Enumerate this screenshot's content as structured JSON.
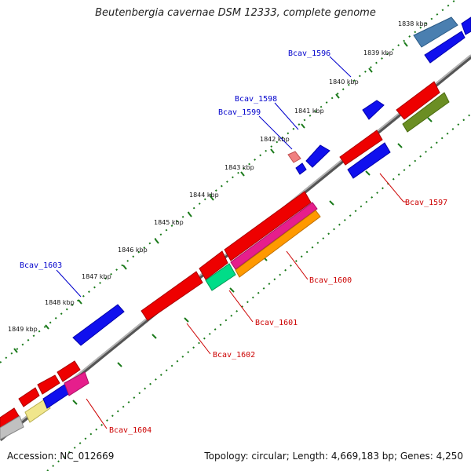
{
  "title": "Beutenbergia cavernae DSM 12333, complete genome",
  "accession": "Accession: NC_012669",
  "summary": "Topology: circular; Length: 4,669,183 bp; Genes: 4,250",
  "colors": {
    "forward_label": "#0000cc",
    "reverse_label": "#cc0000",
    "backbone": "#808080",
    "ticks": "#1a7a1a"
  },
  "ticks": [
    {
      "label": "1838 kbp"
    },
    {
      "label": "1839 kbp"
    },
    {
      "label": "1840 kbp"
    },
    {
      "label": "1841 kbp"
    },
    {
      "label": "1842 kbp"
    },
    {
      "label": "1843 kbp"
    },
    {
      "label": "1844 kbp"
    },
    {
      "label": "1845 kbp"
    },
    {
      "label": "1846 kbp"
    },
    {
      "label": "1847 kbp"
    },
    {
      "label": "1848 kbp"
    },
    {
      "label": "1849 kbp"
    }
  ],
  "gene_labels": [
    {
      "name": "Bcav_1596",
      "strand": "forward"
    },
    {
      "name": "Bcav_1598",
      "strand": "forward"
    },
    {
      "name": "Bcav_1599",
      "strand": "forward"
    },
    {
      "name": "Bcav_1603",
      "strand": "forward"
    },
    {
      "name": "Bcav_1597",
      "strand": "reverse"
    },
    {
      "name": "Bcav_1600",
      "strand": "reverse"
    },
    {
      "name": "Bcav_1601",
      "strand": "reverse"
    },
    {
      "name": "Bcav_1602",
      "strand": "reverse"
    },
    {
      "name": "Bcav_1604",
      "strand": "reverse"
    }
  ]
}
